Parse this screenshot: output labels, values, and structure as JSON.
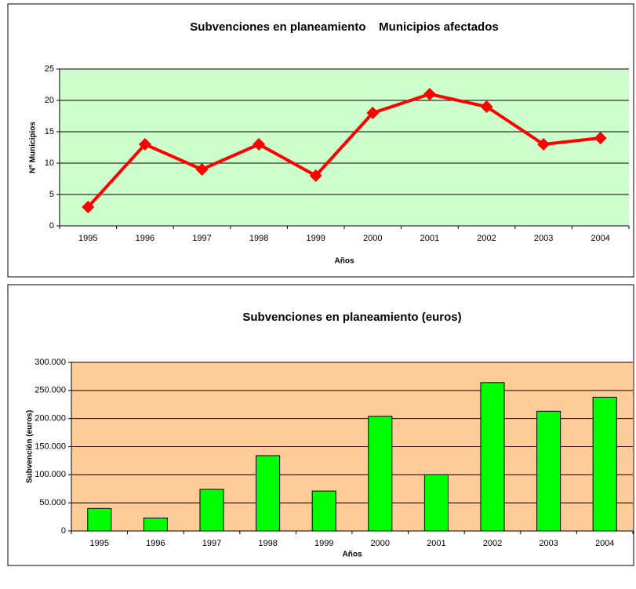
{
  "chart_data": [
    {
      "type": "line",
      "title": "Subvenciones en planeamiento    Municipios afectados",
      "xlabel": "Años",
      "ylabel": "Nº Municipios",
      "categories": [
        "1995",
        "1996",
        "1997",
        "1998",
        "1999",
        "2000",
        "2001",
        "2002",
        "2003",
        "2004"
      ],
      "values": [
        3,
        13,
        9,
        13,
        8,
        18,
        21,
        19,
        13,
        14
      ],
      "color": "#ff0000",
      "background": "#ccffcc",
      "ylim": [
        0,
        25
      ],
      "yticks": [
        0,
        5,
        10,
        15,
        20,
        25
      ],
      "grid": true
    },
    {
      "type": "bar",
      "title": "Subvenciones en planeamiento (euros)",
      "xlabel": "Años",
      "ylabel": "Subvención (euros)",
      "categories": [
        "1995",
        "1996",
        "1997",
        "1998",
        "1999",
        "2000",
        "2001",
        "2002",
        "2003",
        "2004"
      ],
      "values": [
        40000,
        23000,
        74000,
        134000,
        71000,
        204000,
        100000,
        264000,
        213000,
        238000
      ],
      "color": "#00ff00",
      "background": "#ffcc99",
      "ylim": [
        0,
        300000
      ],
      "yticks": [
        0,
        {
          "value": 50000,
          "label": "50.000"
        },
        {
          "value": 100000,
          "label": "100.000"
        },
        {
          "value": 150000,
          "label": "150.000"
        },
        {
          "value": 200000,
          "label": "200.000"
        },
        {
          "value": 250000,
          "label": "250.000"
        },
        {
          "value": 300000,
          "label": "300.000"
        }
      ],
      "grid": true
    }
  ]
}
